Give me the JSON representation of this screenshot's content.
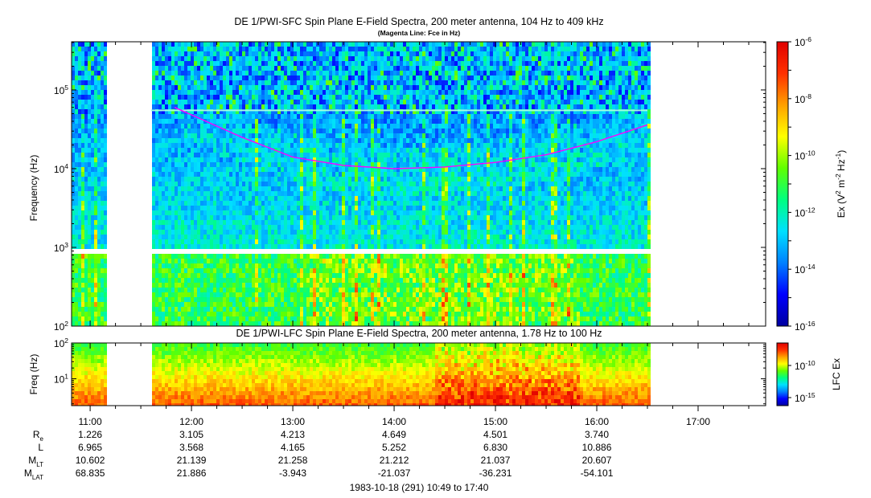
{
  "colors": {
    "background": "#ffffff",
    "magenta_line": "#ff00ff",
    "colormap": [
      "#0000a0",
      "#0000ff",
      "#0080ff",
      "#00e0ff",
      "#00ff80",
      "#60ff00",
      "#ffff00",
      "#ffa000",
      "#ff3000",
      "#e00000"
    ]
  },
  "footer": {
    "date_range": "1983-10-18 (291) 10:49 to 17:40"
  },
  "ephemeris": {
    "labels": [
      {
        "main": "R",
        "sub": "e"
      },
      {
        "main": "L",
        "sub": ""
      },
      {
        "main": "M",
        "sub": "LT"
      },
      {
        "main": "M",
        "sub": "LAT"
      }
    ],
    "rows": [
      [
        "1.226",
        "3.105",
        "4.213",
        "4.649",
        "4.501",
        "3.740"
      ],
      [
        "6.965",
        "3.568",
        "4.165",
        "5.252",
        "6.830",
        "10.886"
      ],
      [
        "10.602",
        "21.139",
        "21.258",
        "21.212",
        "21.037",
        "20.607"
      ],
      [
        "68.835",
        "21.886",
        "-3.943",
        "-21.037",
        "-36.231",
        "-54.101"
      ]
    ]
  },
  "chart_data": [
    {
      "type": "heatmap",
      "title": "DE 1/PWI-SFC  Spin Plane E-Field Spectra, 200 meter antenna, 104 Hz to 409 kHz",
      "subtitle": "(Magenta Line: Fce in Hz)",
      "ylabel": "Frequency (Hz)",
      "yscale": "log",
      "ylim": [
        100,
        409000
      ],
      "yticks": [
        {
          "value": 100,
          "mant": "10",
          "exp": "2"
        },
        {
          "value": 1000,
          "mant": "10",
          "exp": "3"
        },
        {
          "value": 10000,
          "mant": "10",
          "exp": "4"
        },
        {
          "value": 100000,
          "mant": "10",
          "exp": "5"
        }
      ],
      "xlim": [
        "10:49",
        "17:40"
      ],
      "xticks": [
        "11:00",
        "12:00",
        "13:00",
        "14:00",
        "15:00",
        "16:00",
        "17:00"
      ],
      "data_gaps": [
        [
          "11:09",
          "11:36"
        ],
        [
          "16:30",
          "17:40"
        ]
      ],
      "colorbar": {
        "label_parts": [
          "Ex (V",
          "2",
          " m",
          "-2",
          " Hz",
          "-1",
          ")"
        ],
        "scale": "log",
        "range": [
          1e-16,
          1e-06
        ],
        "ticks": [
          {
            "value": 1e-06,
            "mant": "10",
            "exp": "-6"
          },
          {
            "value": 1e-08,
            "mant": "10",
            "exp": "-8"
          },
          {
            "value": 1e-10,
            "mant": "10",
            "exp": "-10"
          },
          {
            "value": 1e-12,
            "mant": "10",
            "exp": "-12"
          },
          {
            "value": 1e-14,
            "mant": "10",
            "exp": "-14"
          },
          {
            "value": 1e-16,
            "mant": "10",
            "exp": "-16"
          }
        ]
      },
      "fce_line": {
        "x": [
          "11:50",
          "12:30",
          "13:00",
          "13:30",
          "14:00",
          "14:30",
          "15:00",
          "15:30",
          "16:00",
          "16:30"
        ],
        "y": [
          60000,
          25000,
          14000,
          11000,
          10000,
          10500,
          12000,
          15000,
          22000,
          36000
        ]
      }
    },
    {
      "type": "heatmap",
      "title": "DE 1/PWI-LFC  Spin Plane E-Field Spectra, 200 meter antenna, 1.78 Hz to 100 Hz",
      "ylabel": "Freq (Hz)",
      "yscale": "log",
      "ylim": [
        1.78,
        100
      ],
      "yticks": [
        {
          "value": 10,
          "mant": "10",
          "exp": "1"
        },
        {
          "value": 100,
          "mant": "10",
          "exp": "2"
        }
      ],
      "xlim": [
        "10:49",
        "17:40"
      ],
      "data_gaps": [
        [
          "11:09",
          "11:36"
        ],
        [
          "16:30",
          "17:40"
        ]
      ],
      "colorbar": {
        "label": "LFC Ex",
        "scale": "log",
        "ticks": [
          {
            "value": 1e-10,
            "mant": "10",
            "exp": "-10"
          },
          {
            "value": 1e-15,
            "mant": "10",
            "exp": "-15"
          }
        ]
      }
    }
  ]
}
